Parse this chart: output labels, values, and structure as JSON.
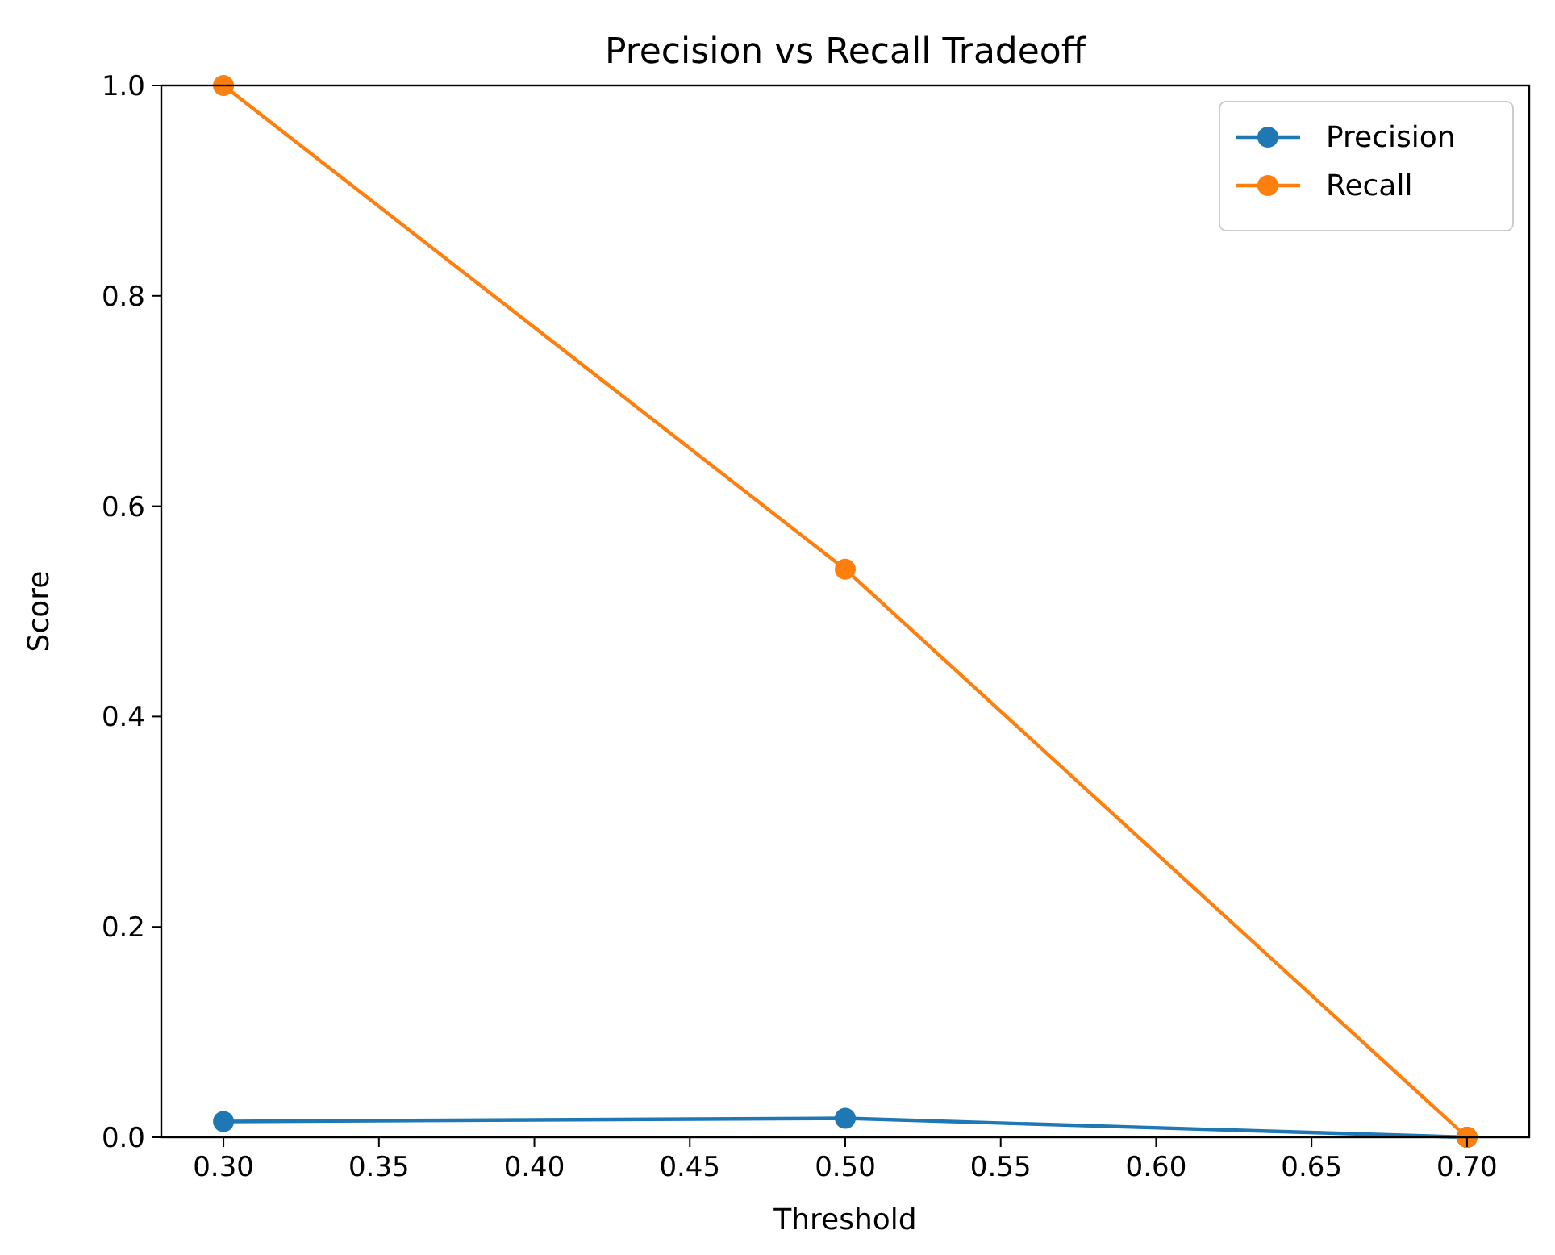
{
  "chart_data": {
    "type": "line",
    "title": "Precision vs Recall Tradeoff",
    "xlabel": "Threshold",
    "ylabel": "Score",
    "x": [
      0.3,
      0.5,
      0.7
    ],
    "series": [
      {
        "name": "Precision",
        "color": "#1f77b4",
        "values": [
          0.015,
          0.018,
          0
        ]
      },
      {
        "name": "Recall",
        "color": "#ff7f0e",
        "values": [
          1,
          0.54,
          0
        ]
      }
    ],
    "xlim": [
      0.28,
      0.72
    ],
    "ylim": [
      0,
      1
    ],
    "xticks": [
      {
        "value": 0.3,
        "label": "0.30"
      },
      {
        "value": 0.35,
        "label": "0.35"
      },
      {
        "value": 0.4,
        "label": "0.40"
      },
      {
        "value": 0.45,
        "label": "0.45"
      },
      {
        "value": 0.5,
        "label": "0.50"
      },
      {
        "value": 0.55,
        "label": "0.55"
      },
      {
        "value": 0.6,
        "label": "0.60"
      },
      {
        "value": 0.65,
        "label": "0.65"
      },
      {
        "value": 0.7,
        "label": "0.70"
      }
    ],
    "yticks": [
      {
        "value": 0,
        "label": "0.0"
      },
      {
        "value": 0.2,
        "label": "0.2"
      },
      {
        "value": 0.4,
        "label": "0.4"
      },
      {
        "value": 0.6,
        "label": "0.6"
      },
      {
        "value": 0.8,
        "label": "0.8"
      },
      {
        "value": 1,
        "label": "1.0"
      }
    ],
    "legend": "top right",
    "marker": "circle",
    "line_style": "solid",
    "grid": false
  }
}
